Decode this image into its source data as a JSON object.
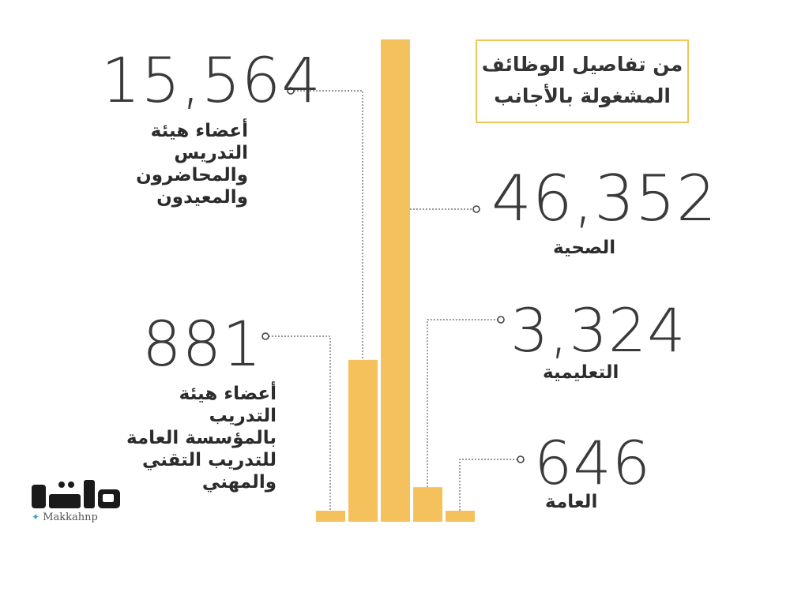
{
  "title": {
    "line1": "من تفاصيل الوظائف",
    "line2": "المشغولة بالأجانب"
  },
  "brand": {
    "logo_text": "مكة",
    "handle": "Makkahnp",
    "bar_color": "#f4c15d",
    "leader_color": "#777777"
  },
  "chart_data": {
    "type": "bar",
    "categories": [
      "أعضاء هيئة التدريب بالمؤسسة العامة للتدريب التقني والمهني",
      "أعضاء هيئة التدريس والمحاضرون والمعيدون",
      "الصحية",
      "التعليمية",
      "العامة"
    ],
    "values": [
      881,
      15564,
      46352,
      3324,
      646
    ],
    "value_labels": [
      "881",
      "15,564",
      "46,352",
      "3,324",
      "646"
    ],
    "label_lines": [
      [
        "أعضاء هيئة",
        "التدريب",
        "بالمؤسسة العامة",
        "للتدريب التقني",
        "والمهني"
      ],
      [
        "أعضاء هيئة",
        "التدريس",
        "والمحاضرون",
        "والمعيدون"
      ],
      [
        "الصحية"
      ],
      [
        "التعليمية"
      ],
      [
        "العامة"
      ]
    ]
  }
}
